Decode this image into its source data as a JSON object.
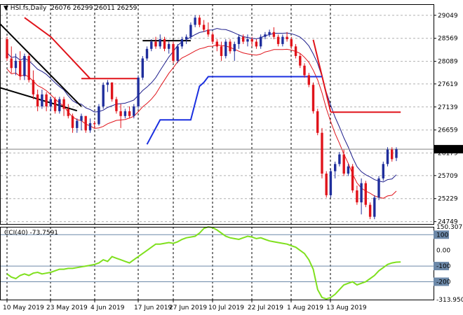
{
  "chart_data": {
    "type": "candlestick",
    "symbol": "HSI.fs,Daily",
    "ohlc_label": "26076 26299 26011 26259",
    "current_price": "26259",
    "price_ticks": [
      "29049",
      "28569",
      "28089",
      "27619",
      "27139",
      "26659",
      "26179",
      "25709",
      "25229",
      "24749"
    ],
    "price_tick_values": [
      29049,
      28569,
      28089,
      27619,
      27139,
      26659,
      26179,
      25709,
      25229,
      24749
    ],
    "ylim": [
      24700,
      29280
    ],
    "date_labels": [
      "10 May 2019",
      "23 May 2019",
      "4 Jun 2019",
      "17 Jun 2019",
      "27 Jun 2019",
      "10 Jul 2019",
      "22 Jul 2019",
      "1 Aug 2019",
      "13 Aug 2019"
    ],
    "candles": [
      [
        28550,
        28600,
        28100,
        28150
      ],
      [
        28150,
        28400,
        27850,
        27950
      ],
      [
        27950,
        28250,
        27800,
        28100
      ],
      [
        28100,
        28300,
        27700,
        27780
      ],
      [
        27780,
        28250,
        27700,
        28200
      ],
      [
        28200,
        28250,
        27650,
        27700
      ],
      [
        27700,
        27900,
        27300,
        27400
      ],
      [
        27400,
        27500,
        27050,
        27150
      ],
      [
        27150,
        27500,
        27100,
        27400
      ],
      [
        27400,
        27450,
        27050,
        27150
      ],
      [
        27150,
        27350,
        27050,
        27300
      ],
      [
        27300,
        27350,
        27000,
        27050
      ],
      [
        27050,
        27350,
        27000,
        27300
      ],
      [
        27300,
        27350,
        26950,
        27100
      ],
      [
        27100,
        27200,
        26900,
        26950
      ],
      [
        26950,
        27000,
        26600,
        26700
      ],
      [
        26700,
        26900,
        26600,
        26850
      ],
      [
        26850,
        27000,
        26650,
        26950
      ],
      [
        26950,
        26950,
        26600,
        26650
      ],
      [
        26650,
        26900,
        26600,
        26800
      ],
      [
        26800,
        26850,
        26700,
        26780
      ],
      [
        26780,
        27200,
        26750,
        27150
      ],
      [
        27150,
        27650,
        27100,
        27600
      ],
      [
        27600,
        27700,
        27450,
        27650
      ],
      [
        27650,
        27650,
        27250,
        27300
      ],
      [
        27300,
        27350,
        27000,
        27050
      ],
      [
        27050,
        27200,
        26700,
        26950
      ],
      [
        26950,
        27100,
        26900,
        27050
      ],
      [
        27050,
        27150,
        26900,
        26950
      ],
      [
        26950,
        27200,
        26900,
        27150
      ],
      [
        27150,
        27800,
        27100,
        27750
      ],
      [
        27750,
        28200,
        27700,
        28150
      ],
      [
        28150,
        28400,
        28100,
        28350
      ],
      [
        28350,
        28550,
        28300,
        28500
      ],
      [
        28500,
        28600,
        28350,
        28400
      ],
      [
        28400,
        28650,
        28350,
        28550
      ],
      [
        28550,
        28600,
        28300,
        28350
      ],
      [
        28350,
        28500,
        28250,
        28450
      ],
      [
        28450,
        28500,
        28050,
        28100
      ],
      [
        28100,
        28450,
        28050,
        28400
      ],
      [
        28400,
        28600,
        28350,
        28550
      ],
      [
        28550,
        28650,
        28450,
        28600
      ],
      [
        28600,
        28900,
        28550,
        28850
      ],
      [
        28850,
        29050,
        28800,
        29000
      ],
      [
        29000,
        29050,
        28800,
        28850
      ],
      [
        28850,
        28950,
        28700,
        28750
      ],
      [
        28750,
        28900,
        28600,
        28650
      ],
      [
        28650,
        28700,
        28450,
        28500
      ],
      [
        28500,
        28550,
        28300,
        28400
      ],
      [
        28400,
        28500,
        28100,
        28200
      ],
      [
        28200,
        28550,
        28150,
        28500
      ],
      [
        28500,
        28550,
        28250,
        28300
      ],
      [
        28300,
        28500,
        28100,
        28450
      ],
      [
        28450,
        28650,
        28350,
        28600
      ],
      [
        28600,
        28650,
        28450,
        28500
      ],
      [
        28500,
        28650,
        28400,
        28550
      ],
      [
        28550,
        28600,
        28400,
        28500
      ],
      [
        28500,
        28550,
        28350,
        28400
      ],
      [
        28400,
        28650,
        28350,
        28600
      ],
      [
        28600,
        28700,
        28550,
        28650
      ],
      [
        28650,
        28750,
        28600,
        28700
      ],
      [
        28700,
        28800,
        28550,
        28600
      ],
      [
        28600,
        28650,
        28400,
        28450
      ],
      [
        28450,
        28650,
        28400,
        28600
      ],
      [
        28600,
        28700,
        28500,
        28550
      ],
      [
        28550,
        28600,
        28350,
        28400
      ],
      [
        28400,
        28450,
        28150,
        28200
      ],
      [
        28200,
        28250,
        27950,
        28000
      ],
      [
        28000,
        28050,
        27750,
        27800
      ],
      [
        27800,
        27850,
        27550,
        27600
      ],
      [
        27600,
        27650,
        27000,
        27050
      ],
      [
        27050,
        27100,
        26550,
        26600
      ],
      [
        26600,
        26700,
        25650,
        25750
      ],
      [
        25750,
        25800,
        25250,
        25300
      ],
      [
        25300,
        25850,
        25250,
        25800
      ],
      [
        25800,
        26000,
        25650,
        25950
      ],
      [
        25950,
        26200,
        25900,
        26150
      ],
      [
        26150,
        26250,
        25700,
        25750
      ],
      [
        25750,
        25950,
        25700,
        25900
      ],
      [
        25900,
        25950,
        25350,
        25400
      ],
      [
        25400,
        25500,
        25100,
        25150
      ],
      [
        25150,
        25650,
        24900,
        25550
      ],
      [
        25550,
        25600,
        25050,
        25100
      ],
      [
        25100,
        25150,
        24800,
        24850
      ],
      [
        24850,
        25300,
        24800,
        25250
      ],
      [
        25250,
        25700,
        25200,
        25650
      ],
      [
        25650,
        26000,
        25600,
        25950
      ],
      [
        25950,
        26300,
        25900,
        26250
      ],
      [
        26250,
        26300,
        26000,
        26050
      ],
      [
        26076,
        26299,
        26011,
        26259
      ]
    ],
    "cci_label": "CCI(40) -73.7591",
    "cci_ticks": [
      "150.3071",
      "100",
      "0.00",
      "-100",
      "-200",
      "-313.9500"
    ],
    "cci_tick_values": [
      150.3071,
      100,
      0,
      -100,
      -200,
      -313.95
    ],
    "cci_levels": [
      100,
      -100,
      -200
    ],
    "cci_ylim": [
      -313.95,
      150.3071
    ],
    "cci_values": [
      -150,
      -170,
      -180,
      -160,
      -150,
      -160,
      -145,
      -140,
      -150,
      -145,
      -140,
      -130,
      -120,
      -120,
      -115,
      -115,
      -110,
      -105,
      -100,
      -95,
      -90,
      -80,
      -60,
      -70,
      -40,
      -50,
      -60,
      -70,
      -80,
      -60,
      -40,
      -20,
      0,
      20,
      40,
      40,
      45,
      50,
      45,
      55,
      70,
      80,
      85,
      90,
      110,
      140,
      150,
      145,
      130,
      110,
      90,
      80,
      75,
      70,
      80,
      90,
      85,
      75,
      80,
      70,
      60,
      55,
      50,
      45,
      40,
      30,
      20,
      0,
      -20,
      -60,
      -120,
      -250,
      -300,
      -310,
      -300,
      -280,
      -250,
      -220,
      -210,
      -200,
      -220,
      -210,
      -200,
      -180,
      -160,
      -130,
      -110,
      -90,
      -80,
      -75,
      -74
    ]
  },
  "colors": {
    "bull": "#1f2e9c",
    "bear": "#e0141b",
    "env_band": "#1e1e8c",
    "bb_red": "#e0141b",
    "cci_line": "#7fe01e",
    "grid": "#b0b0b0",
    "blue_line": "#1a2fe0",
    "red_line": "#e0141b",
    "black_line": "#000000",
    "price_marker_bg": "#000000",
    "level_line": "#6c88a8"
  }
}
